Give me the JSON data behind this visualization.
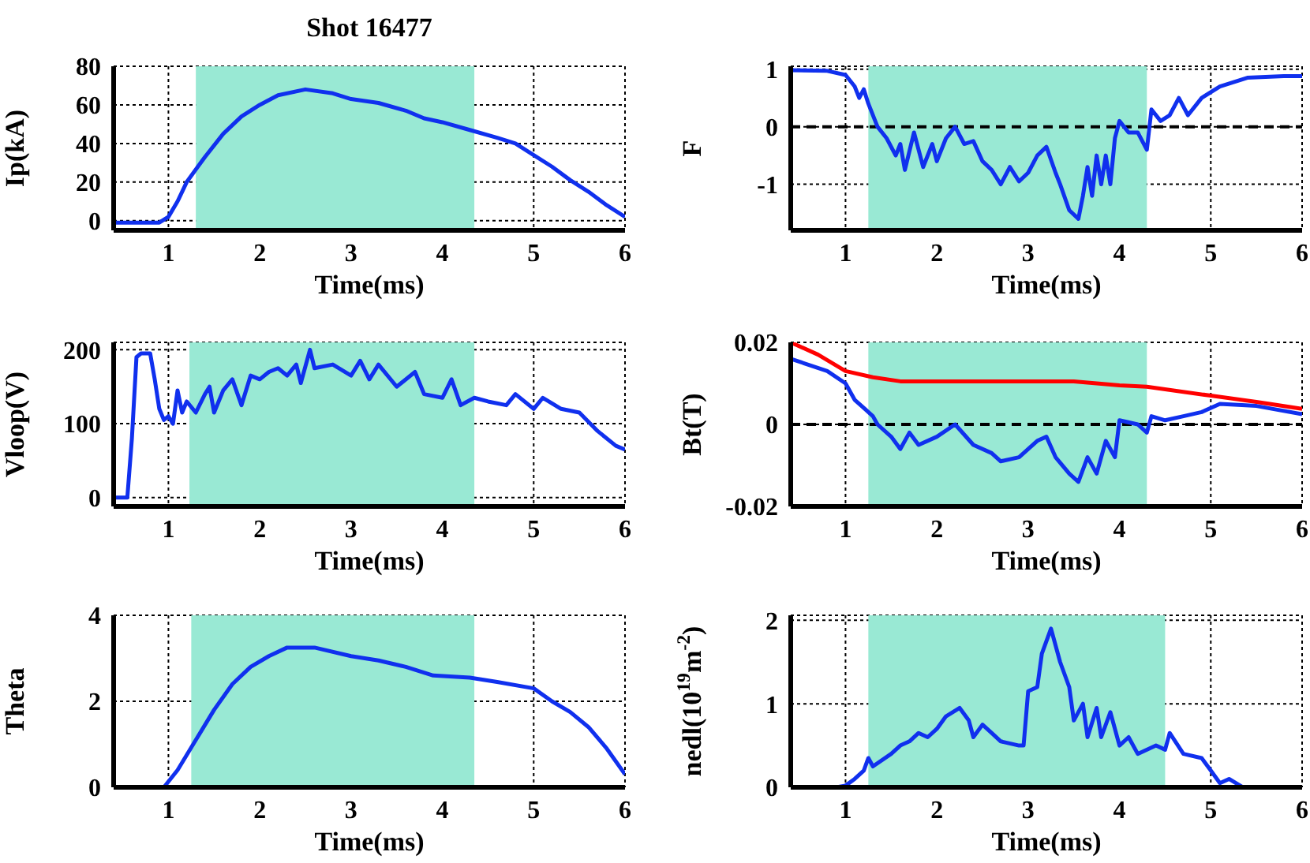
{
  "chart_data": [
    {
      "type": "line",
      "title": "Shot 16477",
      "xlabel": "Time(ms)",
      "ylabel": "Ip(kA)",
      "xlim": [
        0.4,
        6
      ],
      "xticks": [
        1,
        2,
        3,
        4,
        5,
        6
      ],
      "ylim": [
        -5,
        80
      ],
      "yticks": [
        0,
        20,
        40,
        60,
        80
      ],
      "grid": true,
      "bands": [
        {
          "axis": "x",
          "from": 1.3,
          "to": 4.35,
          "color": "#99e9d4"
        }
      ],
      "series": [
        {
          "color": "#1030ee",
          "x": [
            0.4,
            0.9,
            1.0,
            1.1,
            1.2,
            1.4,
            1.6,
            1.8,
            2.0,
            2.2,
            2.5,
            2.8,
            3.0,
            3.3,
            3.6,
            3.8,
            4.0,
            4.3,
            4.6,
            4.8,
            5.0,
            5.2,
            5.4,
            5.6,
            5.8,
            6.0
          ],
          "values": [
            -1,
            -1,
            2,
            10,
            20,
            33,
            45,
            54,
            60,
            65,
            68,
            66,
            63,
            61,
            57,
            53,
            51,
            47,
            43,
            40,
            34,
            28,
            21,
            15,
            8,
            2
          ]
        }
      ]
    },
    {
      "type": "line",
      "xlabel": "Time(ms)",
      "ylabel": "F",
      "xlim": [
        0.4,
        6
      ],
      "xticks": [
        1,
        2,
        3,
        4,
        5,
        6
      ],
      "ylim": [
        -1.8,
        1.05
      ],
      "yticks": [
        -1,
        0,
        1
      ],
      "grid": true,
      "bands": [
        {
          "axis": "x",
          "from": 1.25,
          "to": 4.3,
          "color": "#99e9d4"
        }
      ],
      "ref_lines": [
        {
          "axis": "y",
          "value": 0,
          "line_style": "dashed"
        }
      ],
      "series": [
        {
          "color": "#1030ee",
          "x": [
            0.4,
            0.8,
            1.0,
            1.1,
            1.15,
            1.2,
            1.25,
            1.35,
            1.45,
            1.55,
            1.6,
            1.65,
            1.75,
            1.85,
            1.95,
            2.0,
            2.1,
            2.2,
            2.3,
            2.4,
            2.5,
            2.6,
            2.7,
            2.8,
            2.9,
            3.0,
            3.1,
            3.2,
            3.3,
            3.35,
            3.45,
            3.55,
            3.6,
            3.65,
            3.7,
            3.75,
            3.8,
            3.85,
            3.9,
            3.95,
            4.0,
            4.1,
            4.2,
            4.3,
            4.35,
            4.45,
            4.55,
            4.65,
            4.75,
            4.9,
            5.1,
            5.4,
            5.8,
            6.0
          ],
          "values": [
            0.98,
            0.97,
            0.9,
            0.7,
            0.5,
            0.65,
            0.4,
            0,
            -0.2,
            -0.5,
            -0.3,
            -0.75,
            -0.1,
            -0.7,
            -0.3,
            -0.6,
            -0.2,
            0,
            -0.3,
            -0.25,
            -0.6,
            -0.75,
            -1,
            -0.7,
            -0.95,
            -0.8,
            -0.5,
            -0.35,
            -0.8,
            -1,
            -1.45,
            -1.6,
            -1.2,
            -0.7,
            -1.2,
            -0.5,
            -1,
            -0.5,
            -1,
            -0.2,
            0.1,
            -0.1,
            -0.1,
            -0.4,
            0.3,
            0.1,
            0.2,
            0.5,
            0.2,
            0.5,
            0.7,
            0.85,
            0.88,
            0.88
          ]
        }
      ]
    },
    {
      "type": "line",
      "xlabel": "Time(ms)",
      "ylabel": "Vloop(V)",
      "xlim": [
        0.4,
        6
      ],
      "xticks": [
        1,
        2,
        3,
        4,
        5,
        6
      ],
      "ylim": [
        -12,
        210
      ],
      "yticks": [
        0,
        100,
        200
      ],
      "grid": true,
      "bands": [
        {
          "axis": "x",
          "from": 1.23,
          "to": 4.35,
          "color": "#99e9d4"
        }
      ],
      "series": [
        {
          "color": "#1030ee",
          "x": [
            0.4,
            0.55,
            0.6,
            0.65,
            0.7,
            0.8,
            0.85,
            0.9,
            0.95,
            1.0,
            1.05,
            1.1,
            1.15,
            1.2,
            1.3,
            1.4,
            1.45,
            1.5,
            1.6,
            1.7,
            1.8,
            1.9,
            2.0,
            2.1,
            2.2,
            2.3,
            2.4,
            2.45,
            2.55,
            2.6,
            2.8,
            3.0,
            3.1,
            3.2,
            3.3,
            3.5,
            3.7,
            3.8,
            4.0,
            4.1,
            4.2,
            4.35,
            4.5,
            4.7,
            4.8,
            5.0,
            5.1,
            5.3,
            5.5,
            5.7,
            5.9,
            6.0
          ],
          "values": [
            0,
            0,
            80,
            190,
            195,
            195,
            160,
            120,
            105,
            110,
            100,
            145,
            115,
            130,
            115,
            140,
            150,
            115,
            145,
            160,
            125,
            165,
            160,
            170,
            175,
            165,
            180,
            155,
            200,
            175,
            180,
            165,
            185,
            160,
            180,
            150,
            170,
            140,
            135,
            160,
            125,
            135,
            130,
            125,
            140,
            120,
            135,
            120,
            115,
            90,
            70,
            65
          ]
        }
      ]
    },
    {
      "type": "line",
      "xlabel": "Time(ms)",
      "ylabel": "Bt(T)",
      "xlim": [
        0.4,
        6
      ],
      "xticks": [
        1,
        2,
        3,
        4,
        5,
        6
      ],
      "ylim": [
        -0.02,
        0.02
      ],
      "yticks": [
        -0.02,
        0,
        0.02
      ],
      "grid": true,
      "bands": [
        {
          "axis": "x",
          "from": 1.25,
          "to": 4.3,
          "color": "#99e9d4"
        }
      ],
      "ref_lines": [
        {
          "axis": "y",
          "value": 0,
          "line_style": "dashed"
        }
      ],
      "series": [
        {
          "color": "#ff0000",
          "x": [
            0.4,
            0.7,
            1.0,
            1.3,
            1.6,
            2.0,
            3.0,
            3.5,
            4.0,
            4.3,
            5.0,
            5.5,
            6.0
          ],
          "values": [
            0.02,
            0.017,
            0.013,
            0.0115,
            0.0105,
            0.0105,
            0.0105,
            0.0105,
            0.0095,
            0.0092,
            0.007,
            0.0055,
            0.0038
          ]
        },
        {
          "color": "#1030ee",
          "x": [
            0.4,
            0.8,
            1.0,
            1.1,
            1.2,
            1.3,
            1.35,
            1.5,
            1.6,
            1.7,
            1.8,
            2.0,
            2.2,
            2.4,
            2.6,
            2.7,
            2.9,
            3.1,
            3.2,
            3.3,
            3.45,
            3.55,
            3.65,
            3.75,
            3.85,
            3.95,
            4.0,
            4.2,
            4.3,
            4.35,
            4.5,
            4.7,
            4.9,
            5.1,
            5.5,
            6.0
          ],
          "values": [
            0.016,
            0.013,
            0.01,
            0.006,
            0.004,
            0.002,
            0,
            -0.003,
            -0.006,
            -0.002,
            -0.005,
            -0.003,
            0,
            -0.005,
            -0.007,
            -0.009,
            -0.008,
            -0.004,
            -0.003,
            -0.008,
            -0.012,
            -0.014,
            -0.008,
            -0.012,
            -0.004,
            -0.008,
            0.001,
            0,
            -0.002,
            0.002,
            0.001,
            0.002,
            0.003,
            0.005,
            0.0045,
            0.0025
          ]
        }
      ]
    },
    {
      "type": "line",
      "xlabel": "Time(ms)",
      "ylabel": "Theta",
      "xlim": [
        0.4,
        6
      ],
      "xticks": [
        1,
        2,
        3,
        4,
        5,
        6
      ],
      "ylim": [
        0,
        4
      ],
      "yticks": [
        0,
        2,
        4
      ],
      "grid": true,
      "bands": [
        {
          "axis": "x",
          "from": 1.25,
          "to": 4.35,
          "color": "#99e9d4"
        }
      ],
      "series": [
        {
          "color": "#1030ee",
          "x": [
            0.4,
            0.95,
            1.1,
            1.3,
            1.5,
            1.7,
            1.9,
            2.1,
            2.3,
            2.6,
            3.0,
            3.3,
            3.6,
            3.9,
            4.3,
            4.6,
            5.0,
            5.2,
            5.4,
            5.6,
            5.8,
            6.0
          ],
          "values": [
            0,
            0,
            0.4,
            1.1,
            1.8,
            2.4,
            2.8,
            3.05,
            3.25,
            3.25,
            3.05,
            2.95,
            2.8,
            2.6,
            2.55,
            2.45,
            2.3,
            2,
            1.75,
            1.4,
            0.9,
            0.3
          ]
        }
      ]
    },
    {
      "type": "line",
      "xlabel": "Time(ms)",
      "ylabel": "nedl(10$^{19}$m$^{-2}$)",
      "xlim": [
        0.4,
        6
      ],
      "xticks": [
        1,
        2,
        3,
        4,
        5,
        6
      ],
      "ylim": [
        0,
        2.06
      ],
      "yticks": [
        0,
        1,
        2
      ],
      "grid": true,
      "bands": [
        {
          "axis": "x",
          "from": 1.25,
          "to": 4.5,
          "color": "#99e9d4"
        }
      ],
      "series": [
        {
          "color": "#1030ee",
          "x": [
            0.4,
            0.9,
            1.0,
            1.1,
            1.2,
            1.25,
            1.3,
            1.5,
            1.6,
            1.7,
            1.8,
            1.9,
            2.0,
            2.1,
            2.25,
            2.35,
            2.4,
            2.5,
            2.6,
            2.7,
            2.9,
            2.95,
            3.0,
            3.1,
            3.15,
            3.25,
            3.35,
            3.45,
            3.5,
            3.6,
            3.65,
            3.75,
            3.8,
            3.9,
            4.0,
            4.1,
            4.2,
            4.4,
            4.5,
            4.55,
            4.7,
            4.9,
            5.0,
            5.1,
            5.2,
            5.35,
            6.0
          ],
          "values": [
            0,
            0,
            0.02,
            0.1,
            0.2,
            0.35,
            0.25,
            0.4,
            0.5,
            0.55,
            0.65,
            0.6,
            0.7,
            0.85,
            0.95,
            0.8,
            0.6,
            0.75,
            0.65,
            0.55,
            0.5,
            0.5,
            1.15,
            1.2,
            1.6,
            1.9,
            1.5,
            1.2,
            0.8,
            1,
            0.6,
            0.95,
            0.6,
            0.9,
            0.5,
            0.6,
            0.4,
            0.5,
            0.45,
            0.65,
            0.4,
            0.35,
            0.2,
            0.05,
            0.1,
            0,
            0
          ]
        }
      ]
    }
  ]
}
